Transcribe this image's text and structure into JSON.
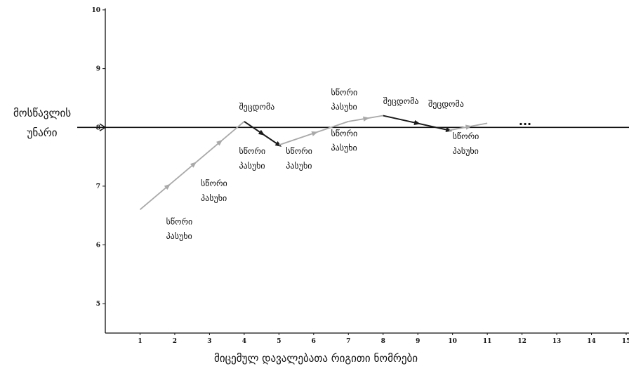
{
  "chart_data": {
    "type": "line",
    "xlabel": "მიცემულ დავალებათა რიგითი ნომრები",
    "ylabel_line1": "მოსწავლის",
    "ylabel_line2": "უნარი",
    "xlim": [
      0,
      15
    ],
    "ylim": [
      4.5,
      10
    ],
    "x_ticks": [
      1,
      2,
      3,
      4,
      5,
      6,
      7,
      8,
      9,
      10,
      11,
      12,
      13,
      14,
      15
    ],
    "y_ticks": [
      5,
      6,
      7,
      8,
      9,
      10
    ],
    "reference_line": 8,
    "continuation": "...",
    "series": [
      {
        "points": [
          {
            "x": 1,
            "y": 6.6
          },
          {
            "x": 4,
            "y": 8.1
          },
          {
            "x": 5,
            "y": 7.7
          },
          {
            "x": 7,
            "y": 8.1
          },
          {
            "x": 8,
            "y": 8.2
          },
          {
            "x": 9.9,
            "y": 7.95
          },
          {
            "x": 11,
            "y": 8.07
          }
        ],
        "segment_kind": [
          "correct",
          "error",
          "correct",
          "correct",
          "error",
          "correct"
        ]
      }
    ],
    "annotations": [
      {
        "id": "a1",
        "text": "სწორი",
        "x": 1.75,
        "y": 6.35
      },
      {
        "id": "a2",
        "text": "პასუხი",
        "x": 1.75,
        "y": 6.1
      },
      {
        "id": "a3",
        "text": "სწორი",
        "x": 2.75,
        "y": 7.0
      },
      {
        "id": "a4",
        "text": "პასუხი",
        "x": 2.75,
        "y": 6.75
      },
      {
        "id": "a5",
        "text": "შეცდომა",
        "x": 3.85,
        "y": 8.3
      },
      {
        "id": "a6",
        "text": "სწორი",
        "x": 3.85,
        "y": 7.55
      },
      {
        "id": "a7",
        "text": "პასუხი",
        "x": 3.85,
        "y": 7.3
      },
      {
        "id": "a8",
        "text": "სწორი",
        "x": 5.2,
        "y": 7.55
      },
      {
        "id": "a9",
        "text": "პასუხი",
        "x": 5.2,
        "y": 7.3
      },
      {
        "id": "a10",
        "text": "სწორი",
        "x": 6.5,
        "y": 8.55
      },
      {
        "id": "a11",
        "text": "პასუხი",
        "x": 6.5,
        "y": 8.3
      },
      {
        "id": "a12",
        "text": "სწორი",
        "x": 6.5,
        "y": 7.85
      },
      {
        "id": "a13",
        "text": "პასუხი",
        "x": 6.5,
        "y": 7.6
      },
      {
        "id": "a14",
        "text": "შეცდომა",
        "x": 8.0,
        "y": 8.4
      },
      {
        "id": "a15",
        "text": "შეცდომა",
        "x": 9.3,
        "y": 8.35
      },
      {
        "id": "a16",
        "text": "სწორი",
        "x": 10.0,
        "y": 7.8
      },
      {
        "id": "a17",
        "text": "პასუხი",
        "x": 10.0,
        "y": 7.55
      }
    ],
    "colors": {
      "correct": "#a9a9a9",
      "error": "#1a1a1a",
      "axis": "#111111"
    }
  }
}
